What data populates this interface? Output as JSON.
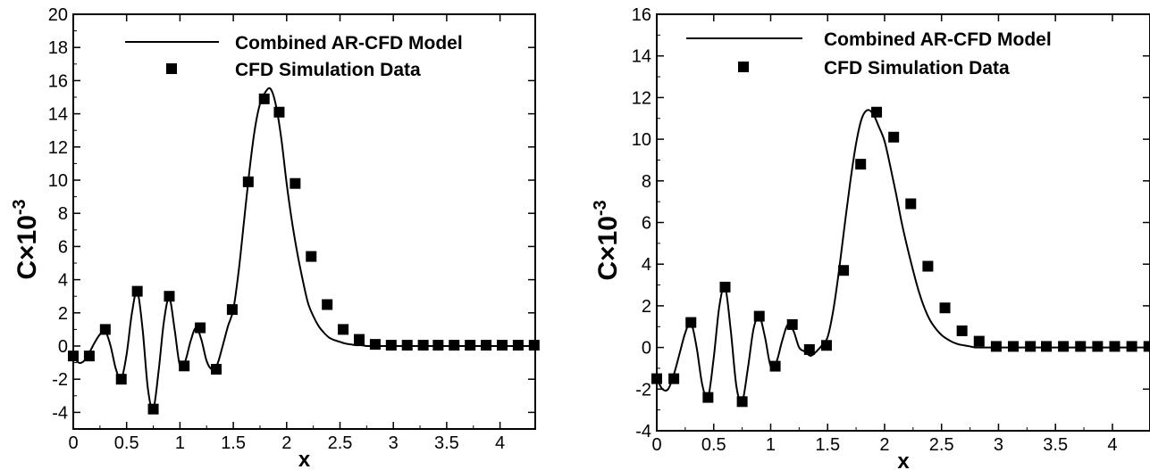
{
  "chart_data": [
    {
      "type": "line",
      "title": "",
      "xlabel": "x",
      "ylabel": "C×10",
      "ylabel_exponent": "-3",
      "xlim": [
        0,
        4.33
      ],
      "ylim": [
        -5,
        20
      ],
      "xticks": [
        0,
        0.5,
        1,
        1.5,
        2,
        2.5,
        3,
        3.5,
        4
      ],
      "xtick_labels": [
        "0",
        "0.5",
        "1",
        "1.5",
        "2",
        "2.5",
        "3",
        "3.5",
        "4"
      ],
      "yticks": [
        -4,
        -2,
        0,
        2,
        4,
        6,
        8,
        10,
        12,
        14,
        16,
        18,
        20
      ],
      "ytick_labels": [
        "-4",
        "-2",
        "0",
        "2",
        "4",
        "6",
        "8",
        "10",
        "12",
        "14",
        "16",
        "18",
        "20"
      ],
      "legend": {
        "position": "top-right",
        "line_label": "Combined AR-CFD Model",
        "marker_label": "CFD Simulation Data"
      },
      "series": [
        {
          "name": "Combined AR-CFD Model",
          "style": "line",
          "x": [
            0,
            0.05,
            0.1,
            0.15,
            0.2,
            0.25,
            0.3,
            0.35,
            0.4,
            0.45,
            0.5,
            0.55,
            0.6,
            0.65,
            0.7,
            0.75,
            0.8,
            0.85,
            0.9,
            0.95,
            1.0,
            1.05,
            1.1,
            1.15,
            1.2,
            1.25,
            1.3,
            1.35,
            1.4,
            1.45,
            1.5,
            1.55,
            1.6,
            1.65,
            1.7,
            1.75,
            1.8,
            1.85,
            1.9,
            1.95,
            2.0,
            2.05,
            2.1,
            2.15,
            2.2,
            2.25,
            2.3,
            2.35,
            2.4,
            2.45,
            2.5,
            2.55,
            2.6,
            2.65,
            2.7,
            2.75,
            2.8,
            2.9,
            3.0,
            3.2,
            3.5,
            4.0,
            4.33
          ],
          "y": [
            -0.6,
            -1.0,
            -0.9,
            -0.4,
            0.2,
            0.7,
            0.9,
            0.0,
            -1.4,
            -2.0,
            -0.5,
            2.0,
            3.3,
            1.0,
            -2.6,
            -3.8,
            -1.5,
            1.5,
            2.9,
            1.0,
            -1.2,
            -0.9,
            0.3,
            1.1,
            0.4,
            -0.9,
            -1.4,
            -1.1,
            0.0,
            1.2,
            2.2,
            4.5,
            7.5,
            10.5,
            13.0,
            14.6,
            15.3,
            15.5,
            14.5,
            12.5,
            9.8,
            7.5,
            5.6,
            4.0,
            2.6,
            1.8,
            1.2,
            0.8,
            0.5,
            0.35,
            0.25,
            0.15,
            0.1,
            0.05,
            0.05,
            0.0,
            0.0,
            0.0,
            0.0,
            0.0,
            0.0,
            0.0,
            0.0
          ]
        },
        {
          "name": "CFD Simulation Data",
          "style": "marker",
          "x": [
            0.0,
            0.15,
            0.3,
            0.45,
            0.6,
            0.75,
            0.9,
            1.04,
            1.19,
            1.34,
            1.49,
            1.64,
            1.79,
            1.93,
            2.08,
            2.23,
            2.38,
            2.53,
            2.68,
            2.83,
            2.98,
            3.13,
            3.28,
            3.42,
            3.57,
            3.72,
            3.87,
            4.02,
            4.17,
            4.32
          ],
          "y": [
            -0.6,
            -0.6,
            1.0,
            -2.0,
            3.3,
            -3.8,
            3.0,
            -1.2,
            1.1,
            -1.4,
            2.2,
            9.9,
            14.9,
            14.1,
            9.8,
            5.4,
            2.5,
            1.0,
            0.4,
            0.1,
            0.05,
            0.05,
            0.05,
            0.05,
            0.05,
            0.05,
            0.05,
            0.05,
            0.05,
            0.05
          ]
        }
      ]
    },
    {
      "type": "line",
      "title": "",
      "xlabel": "x",
      "ylabel": "C×10",
      "ylabel_exponent": "-3",
      "xlim": [
        0,
        4.33
      ],
      "ylim": [
        -4,
        16
      ],
      "xticks": [
        0,
        0.5,
        1,
        1.5,
        2,
        2.5,
        3,
        3.5,
        4
      ],
      "xtick_labels": [
        "0",
        "0.5",
        "1",
        "1.5",
        "2",
        "2.5",
        "3",
        "3.5",
        "4"
      ],
      "yticks": [
        -4,
        -2,
        0,
        2,
        4,
        6,
        8,
        10,
        12,
        14,
        16
      ],
      "ytick_labels": [
        "-4",
        "-2",
        "0",
        "2",
        "4",
        "6",
        "8",
        "10",
        "12",
        "14",
        "16"
      ],
      "legend": {
        "position": "top-right",
        "line_label": "Combined AR-CFD Model",
        "marker_label": "CFD Simulation Data"
      },
      "series": [
        {
          "name": "Combined AR-CFD Model",
          "style": "line",
          "x": [
            0,
            0.05,
            0.1,
            0.15,
            0.2,
            0.25,
            0.3,
            0.35,
            0.4,
            0.45,
            0.5,
            0.55,
            0.6,
            0.65,
            0.7,
            0.75,
            0.8,
            0.85,
            0.9,
            0.95,
            1.0,
            1.05,
            1.1,
            1.15,
            1.2,
            1.25,
            1.3,
            1.35,
            1.4,
            1.45,
            1.5,
            1.55,
            1.6,
            1.65,
            1.7,
            1.75,
            1.8,
            1.85,
            1.9,
            1.95,
            2.0,
            2.05,
            2.1,
            2.15,
            2.2,
            2.25,
            2.3,
            2.35,
            2.4,
            2.45,
            2.5,
            2.55,
            2.6,
            2.65,
            2.7,
            2.75,
            2.8,
            2.9,
            3.0,
            3.2,
            3.5,
            4.0,
            4.33
          ],
          "y": [
            -1.5,
            -2.0,
            -2.0,
            -1.3,
            -0.3,
            0.7,
            1.2,
            0.0,
            -1.8,
            -2.4,
            -0.5,
            2.0,
            2.9,
            0.8,
            -1.9,
            -2.6,
            -1.0,
            0.9,
            1.5,
            0.5,
            -0.9,
            -0.7,
            0.3,
            1.1,
            0.8,
            0.0,
            -0.2,
            -0.4,
            -0.2,
            0.1,
            0.5,
            1.8,
            3.7,
            5.9,
            8.0,
            9.8,
            11.0,
            11.4,
            11.2,
            10.6,
            9.9,
            8.7,
            7.4,
            6.0,
            4.8,
            3.7,
            2.7,
            1.9,
            1.3,
            0.9,
            0.6,
            0.4,
            0.25,
            0.15,
            0.1,
            0.05,
            0.0,
            0.0,
            0.0,
            0.0,
            0.0,
            0.0,
            0.0
          ]
        },
        {
          "name": "CFD Simulation Data",
          "style": "marker",
          "x": [
            0.0,
            0.15,
            0.3,
            0.45,
            0.6,
            0.75,
            0.9,
            1.04,
            1.19,
            1.34,
            1.49,
            1.64,
            1.79,
            1.93,
            2.08,
            2.23,
            2.38,
            2.53,
            2.68,
            2.83,
            2.98,
            3.13,
            3.28,
            3.42,
            3.57,
            3.72,
            3.87,
            4.02,
            4.17,
            4.32
          ],
          "y": [
            -1.5,
            -1.5,
            1.2,
            -2.4,
            2.9,
            -2.6,
            1.5,
            -0.9,
            1.1,
            -0.1,
            0.1,
            3.7,
            8.8,
            11.3,
            10.1,
            6.9,
            3.9,
            1.9,
            0.8,
            0.3,
            0.05,
            0.05,
            0.05,
            0.05,
            0.05,
            0.05,
            0.05,
            0.05,
            0.05,
            0.05
          ]
        }
      ]
    }
  ]
}
